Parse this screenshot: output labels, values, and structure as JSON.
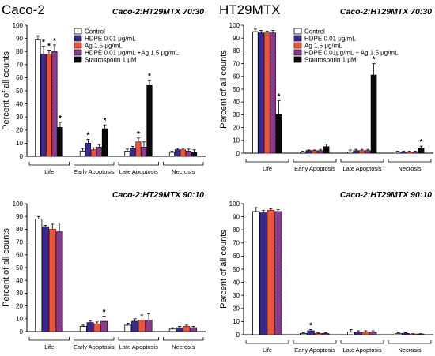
{
  "figure": {
    "series_styles": {
      "Control": {
        "fill": "#ffffff",
        "stroke": "#000000",
        "pattern": "none"
      },
      "HDPE": {
        "fill": "#3b2a8c",
        "stroke": "#1a1150",
        "pattern": "none"
      },
      "Ag": {
        "fill": "#e8553a",
        "stroke": "#7a2416",
        "pattern": "none"
      },
      "HDPE+Ag": {
        "fill": "#7a3a8a",
        "stroke": "#3a1040",
        "pattern": "hatch"
      },
      "Stauro": {
        "fill": "#0a0a0a",
        "stroke": "#000000",
        "pattern": "none"
      }
    }
  },
  "chart_data": [
    {
      "type": "bar",
      "cell_line": "Caco-2",
      "condition": "Caco-2:HT29MTX   70:30",
      "ylabel": "Percent of all counts",
      "ylim": [
        0,
        100
      ],
      "yticks": [
        0,
        10,
        20,
        30,
        40,
        50,
        60,
        70,
        80,
        90,
        100
      ],
      "categories": [
        "Life",
        "Early Apoptosis",
        "Late Apoptosis",
        "Necrosis"
      ],
      "legend": [
        "Control",
        "HDPE 0.01 μg/mL",
        "Ag 1.5 μg/mL",
        "HDPE 0.01 μg/mL +Ag 1.5 μg/mL",
        "Staurosporin 1 μM"
      ],
      "series": [
        {
          "key": "Control",
          "values": [
            89,
            4,
            4,
            3
          ],
          "errors": [
            3,
            2,
            1.5,
            1
          ],
          "stars": [
            false,
            false,
            false,
            false
          ]
        },
        {
          "key": "HDPE",
          "values": [
            78,
            10,
            6,
            5
          ],
          "errors": [
            6,
            3,
            1.5,
            1
          ],
          "stars": [
            true,
            true,
            false,
            false
          ]
        },
        {
          "key": "Ag",
          "values": [
            78,
            5,
            11,
            5
          ],
          "errors": [
            3,
            1.5,
            3,
            1
          ],
          "stars": [
            true,
            false,
            true,
            false
          ]
        },
        {
          "key": "HDPE+Ag",
          "values": [
            80,
            7,
            7,
            4
          ],
          "errors": [
            5,
            2,
            4,
            1.5
          ],
          "stars": [
            true,
            false,
            false,
            false
          ]
        },
        {
          "key": "Stauro",
          "values": [
            22,
            21,
            54,
            3
          ],
          "errors": [
            4,
            3,
            4,
            2
          ],
          "stars": [
            true,
            true,
            true,
            false
          ]
        }
      ]
    },
    {
      "type": "bar",
      "cell_line": "HT29MTX",
      "condition": "Caco-2:HT29MTX   70:30",
      "ylabel": "Percent of all counts",
      "ylim": [
        0,
        100
      ],
      "yticks": [
        0,
        10,
        20,
        30,
        40,
        50,
        60,
        70,
        80,
        90,
        100
      ],
      "categories": [
        "Life",
        "Early Apoptosis",
        "Late Apoptosis",
        "Necrosis"
      ],
      "legend": [
        "Control",
        "HDPE 0.01 μg/mL",
        "Ag 1.5 μg/mL",
        "HDPE 0.01μg/mL + Ag 1.5 μg/mL",
        "Staurosporin 1 μM"
      ],
      "series": [
        {
          "key": "Control",
          "values": [
            95,
            1,
            1,
            1
          ],
          "errors": [
            2,
            0.5,
            1.5,
            0.5
          ],
          "stars": [
            false,
            false,
            false,
            false
          ]
        },
        {
          "key": "HDPE",
          "values": [
            94,
            2,
            2,
            1
          ],
          "errors": [
            2,
            0.5,
            1,
            0.5
          ],
          "stars": [
            false,
            false,
            false,
            false
          ]
        },
        {
          "key": "Ag",
          "values": [
            94,
            2,
            2,
            1
          ],
          "errors": [
            1.5,
            0.5,
            1,
            0.5
          ],
          "stars": [
            false,
            false,
            false,
            false
          ]
        },
        {
          "key": "HDPE+Ag",
          "values": [
            94,
            2,
            2,
            1
          ],
          "errors": [
            2,
            1,
            1,
            0.5
          ],
          "stars": [
            false,
            false,
            false,
            false
          ]
        },
        {
          "key": "Stauro",
          "values": [
            30,
            5,
            61,
            4
          ],
          "errors": [
            11,
            2,
            9,
            1.5
          ],
          "stars": [
            true,
            false,
            true,
            true
          ]
        }
      ]
    },
    {
      "type": "bar",
      "cell_line": "",
      "condition": "Caco-2:HT29MTX   90:10",
      "ylabel": "Percent of all counts",
      "ylim": [
        0,
        100
      ],
      "yticks": [
        0,
        10,
        20,
        30,
        40,
        50,
        60,
        70,
        80,
        90,
        100
      ],
      "categories": [
        "Life",
        "Early Apoptosis",
        "Late Apoptosis",
        "Necrosis"
      ],
      "legend": [],
      "series": [
        {
          "key": "Control",
          "values": [
            88,
            4,
            5,
            2
          ],
          "errors": [
            2,
            1,
            1.5,
            1
          ],
          "stars": [
            false,
            false,
            false,
            false
          ]
        },
        {
          "key": "HDPE",
          "values": [
            82,
            7,
            8,
            3
          ],
          "errors": [
            1,
            1.5,
            2,
            1
          ],
          "stars": [
            false,
            false,
            false,
            false
          ]
        },
        {
          "key": "Ag",
          "values": [
            80,
            6,
            9,
            4
          ],
          "errors": [
            4,
            1.5,
            4,
            1
          ],
          "stars": [
            false,
            false,
            false,
            false
          ]
        },
        {
          "key": "HDPE+Ag",
          "values": [
            78,
            8,
            9,
            3
          ],
          "errors": [
            7,
            4,
            5,
            1
          ],
          "stars": [
            false,
            true,
            false,
            false
          ]
        }
      ]
    },
    {
      "type": "bar",
      "cell_line": "",
      "condition": "Caco-2:HT29MTX   90:10",
      "ylabel": "Percent of all counts",
      "ylim": [
        0,
        100
      ],
      "yticks": [
        0,
        10,
        20,
        30,
        40,
        50,
        60,
        70,
        80,
        90,
        100
      ],
      "categories": [
        "Life",
        "Early Apoptosis",
        "Late Apoptosis",
        "Necrosis"
      ],
      "legend": [],
      "series": [
        {
          "key": "Control",
          "values": [
            94,
            1,
            2,
            1
          ],
          "errors": [
            3,
            0.5,
            2,
            0.5
          ],
          "stars": [
            false,
            false,
            false,
            false
          ]
        },
        {
          "key": "HDPE",
          "values": [
            93,
            3,
            2,
            1
          ],
          "errors": [
            2,
            1,
            1,
            0.5
          ],
          "stars": [
            false,
            true,
            false,
            false
          ]
        },
        {
          "key": "Ag",
          "values": [
            95,
            1,
            2,
            0.5
          ],
          "errors": [
            1,
            0.5,
            1,
            0.3
          ],
          "stars": [
            false,
            false,
            false,
            false
          ]
        },
        {
          "key": "HDPE+Ag",
          "values": [
            94,
            1,
            2,
            0.5
          ],
          "errors": [
            1.5,
            0.5,
            1,
            0.3
          ],
          "stars": [
            false,
            false,
            false,
            false
          ]
        }
      ]
    }
  ]
}
